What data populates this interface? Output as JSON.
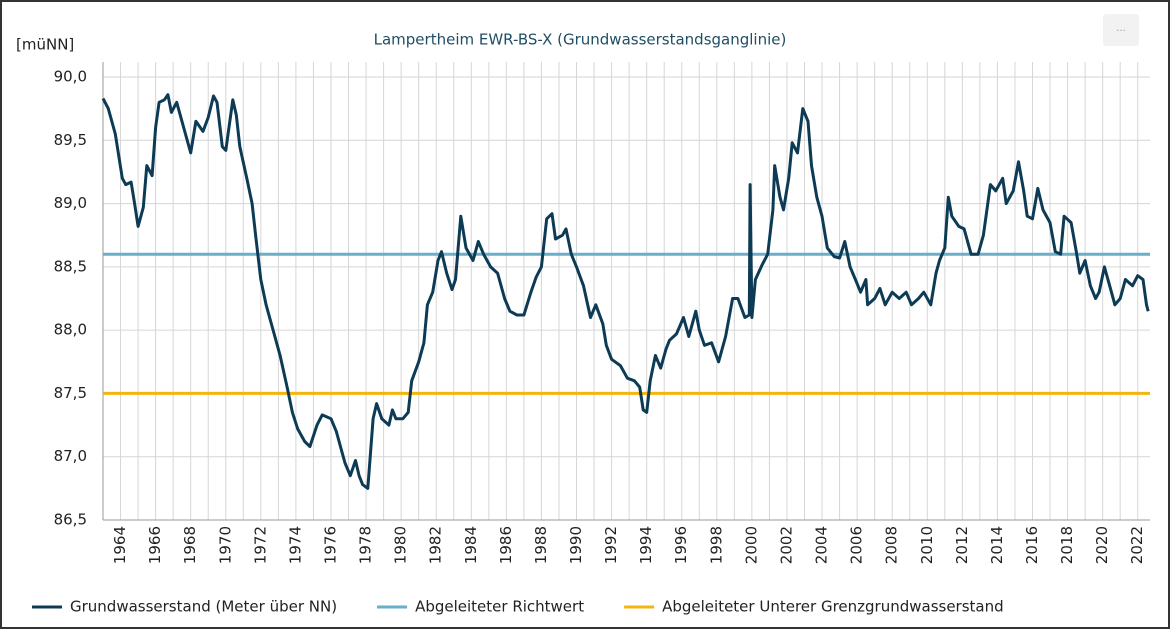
{
  "chart_data": {
    "type": "line",
    "title": "Lampertheim EWR-BS-X (Grundwasserstandsganglinie)",
    "y_label": "[müNN]",
    "menu_button": "...",
    "ylim": [
      86.5,
      90.0
    ],
    "yticks": [
      {
        "value": 86.5,
        "label": "86,5"
      },
      {
        "value": 87.0,
        "label": "87,0"
      },
      {
        "value": 87.5,
        "label": "87,5"
      },
      {
        "value": 88.0,
        "label": "88,0"
      },
      {
        "value": 88.5,
        "label": "88,5"
      },
      {
        "value": 89.0,
        "label": "89,0"
      },
      {
        "value": 89.5,
        "label": "89,5"
      },
      {
        "value": 90.0,
        "label": "90,0"
      }
    ],
    "xlim": [
      1963.0,
      2022.7
    ],
    "xticks": [
      1964,
      1966,
      1968,
      1970,
      1972,
      1974,
      1976,
      1978,
      1980,
      1982,
      1984,
      1986,
      1988,
      1990,
      1992,
      1994,
      1996,
      1998,
      2000,
      2002,
      2004,
      2006,
      2008,
      2010,
      2012,
      2014,
      2016,
      2018,
      2020,
      2022
    ],
    "xminor_ticks": [
      1965,
      1967,
      1969,
      1971,
      1973,
      1975,
      1977,
      1979,
      1981,
      1983,
      1985,
      1987,
      1989,
      1991,
      1993,
      1995,
      1997,
      1999,
      2001,
      2003,
      2005,
      2007,
      2009,
      2011,
      2013,
      2015,
      2017,
      2019,
      2021
    ],
    "grid": true,
    "series": [
      {
        "name": "Grundwasserstand (Meter über NN)",
        "color": "#0d3b55",
        "x": [
          1963.0,
          1963.3,
          1963.7,
          1964.1,
          1964.3,
          1964.6,
          1964.8,
          1965.0,
          1965.3,
          1965.5,
          1965.8,
          1966.0,
          1966.2,
          1966.5,
          1966.7,
          1966.9,
          1967.2,
          1967.6,
          1968.0,
          1968.3,
          1968.7,
          1969.0,
          1969.3,
          1969.5,
          1969.8,
          1970.0,
          1970.4,
          1970.6,
          1970.8,
          1971.2,
          1971.5,
          1971.7,
          1972.0,
          1972.3,
          1972.7,
          1973.1,
          1973.5,
          1973.8,
          1974.1,
          1974.5,
          1974.8,
          1975.2,
          1975.5,
          1976.0,
          1976.3,
          1976.6,
          1976.8,
          1977.1,
          1977.4,
          1977.6,
          1977.8,
          1978.1,
          1978.4,
          1978.6,
          1978.9,
          1979.3,
          1979.5,
          1979.7,
          1980.1,
          1980.4,
          1980.6,
          1981.0,
          1981.3,
          1981.5,
          1981.8,
          1982.1,
          1982.3,
          1982.6,
          1982.9,
          1983.1,
          1983.4,
          1983.7,
          1984.1,
          1984.4,
          1984.7,
          1985.1,
          1985.5,
          1985.9,
          1986.2,
          1986.6,
          1987.0,
          1987.4,
          1987.7,
          1988.0,
          1988.3,
          1988.6,
          1988.8,
          1989.2,
          1989.4,
          1989.7,
          1990.0,
          1990.4,
          1990.8,
          1991.1,
          1991.5,
          1991.7,
          1992.0,
          1992.5,
          1992.9,
          1993.3,
          1993.6,
          1993.8,
          1994.0,
          1994.2,
          1994.5,
          1994.8,
          1995.1,
          1995.3,
          1995.7,
          1996.1,
          1996.4,
          1996.8,
          1997.0,
          1997.3,
          1997.7,
          1998.1,
          1998.5,
          1998.9,
          1999.2,
          1999.6,
          1999.85,
          1999.9,
          2000.0,
          2000.2,
          2000.6,
          2000.9,
          2001.2,
          2001.3,
          2001.6,
          2001.8,
          2002.1,
          2002.3,
          2002.6,
          2002.9,
          2003.2,
          2003.4,
          2003.7,
          2004.0,
          2004.3,
          2004.7,
          2005.0,
          2005.3,
          2005.6,
          2005.9,
          2006.2,
          2006.5,
          2006.6,
          2007.0,
          2007.3,
          2007.6,
          2008.0,
          2008.4,
          2008.8,
          2009.1,
          2009.5,
          2009.8,
          2010.2,
          2010.5,
          2010.7,
          2011.0,
          2011.2,
          2011.4,
          2011.8,
          2012.1,
          2012.5,
          2012.9,
          2013.2,
          2013.6,
          2013.9,
          2014.3,
          2014.5,
          2014.9,
          2015.2,
          2015.5,
          2015.7,
          2016.0,
          2016.3,
          2016.6,
          2017.0,
          2017.3,
          2017.6,
          2017.8,
          2018.2,
          2018.5,
          2018.7,
          2019.0,
          2019.3,
          2019.6,
          2019.8,
          2020.1,
          2020.4,
          2020.7,
          2021.0,
          2021.3,
          2021.7,
          2022.0,
          2022.3,
          2022.5,
          2022.6
        ],
        "values": [
          89.83,
          89.75,
          89.55,
          89.2,
          89.15,
          89.17,
          89.0,
          88.82,
          88.97,
          89.3,
          89.22,
          89.6,
          89.8,
          89.82,
          89.86,
          89.72,
          89.8,
          89.6,
          89.4,
          89.65,
          89.57,
          89.68,
          89.85,
          89.8,
          89.45,
          89.42,
          89.82,
          89.7,
          89.45,
          89.2,
          89.0,
          88.75,
          88.4,
          88.2,
          88.0,
          87.8,
          87.55,
          87.35,
          87.22,
          87.12,
          87.08,
          87.25,
          87.33,
          87.3,
          87.2,
          87.05,
          86.95,
          86.85,
          86.97,
          86.85,
          86.78,
          86.75,
          87.3,
          87.42,
          87.3,
          87.25,
          87.37,
          87.3,
          87.3,
          87.35,
          87.6,
          87.75,
          87.9,
          88.2,
          88.3,
          88.55,
          88.62,
          88.45,
          88.32,
          88.4,
          88.9,
          88.65,
          88.55,
          88.7,
          88.6,
          88.5,
          88.45,
          88.25,
          88.15,
          88.12,
          88.12,
          88.3,
          88.42,
          88.5,
          88.88,
          88.92,
          88.72,
          88.75,
          88.8,
          88.6,
          88.5,
          88.35,
          88.1,
          88.2,
          88.05,
          87.88,
          87.77,
          87.72,
          87.62,
          87.6,
          87.55,
          87.37,
          87.35,
          87.6,
          87.8,
          87.7,
          87.85,
          87.92,
          87.97,
          88.1,
          87.95,
          88.15,
          88.0,
          87.88,
          87.9,
          87.75,
          87.95,
          88.25,
          88.25,
          88.1,
          88.12,
          89.15,
          88.1,
          88.4,
          88.52,
          88.6,
          88.95,
          89.3,
          89.05,
          88.95,
          89.2,
          89.48,
          89.4,
          89.75,
          89.65,
          89.3,
          89.05,
          88.9,
          88.65,
          88.58,
          88.57,
          88.7,
          88.5,
          88.4,
          88.3,
          88.4,
          88.2,
          88.25,
          88.33,
          88.2,
          88.3,
          88.25,
          88.3,
          88.2,
          88.25,
          88.3,
          88.2,
          88.45,
          88.55,
          88.65,
          89.05,
          88.9,
          88.82,
          88.8,
          88.6,
          88.6,
          88.75,
          89.15,
          89.1,
          89.2,
          89.0,
          89.1,
          89.33,
          89.1,
          88.9,
          88.88,
          89.12,
          88.95,
          88.85,
          88.62,
          88.6,
          88.9,
          88.85,
          88.62,
          88.45,
          88.55,
          88.35,
          88.25,
          88.3,
          88.5,
          88.35,
          88.2,
          88.25,
          88.4,
          88.35,
          88.43,
          88.4,
          88.2,
          88.15
        ]
      }
    ],
    "reference_lines": [
      {
        "name": "Abgeleiteter Richtwert",
        "color": "#6aaec9",
        "value": 88.6
      },
      {
        "name": "Abgeleiteter Unterer Grenzgrundwasserstand",
        "color": "#f6b40e",
        "value": 87.5
      }
    ]
  }
}
